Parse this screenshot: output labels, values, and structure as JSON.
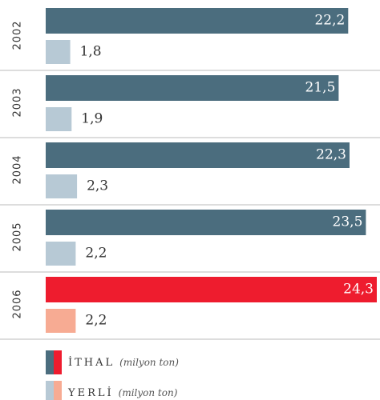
{
  "chart_data": {
    "type": "bar",
    "orientation": "horizontal",
    "categories": [
      "2002",
      "2003",
      "2004",
      "2005",
      "2006"
    ],
    "unit": "(milyon ton)",
    "series": [
      {
        "name": "İTHAL",
        "colors": [
          "#4b6d7e",
          "#4b6d7e",
          "#4b6d7e",
          "#4b6d7e",
          "#ee1c2e"
        ],
        "values": [
          22.2,
          21.5,
          22.3,
          23.5,
          24.3
        ],
        "value_labels": [
          "22,2",
          "21,5",
          "22,3",
          "23,5",
          "24,3"
        ]
      },
      {
        "name": "YERLİ",
        "colors": [
          "#b7c9d5",
          "#b7c9d5",
          "#b7c9d5",
          "#b7c9d5",
          "#f7ab93"
        ],
        "values": [
          1.8,
          1.9,
          2.3,
          2.2,
          2.2
        ],
        "value_labels": [
          "1,8",
          "1,9",
          "2,3",
          "2,2",
          "2,2"
        ]
      }
    ]
  }
}
